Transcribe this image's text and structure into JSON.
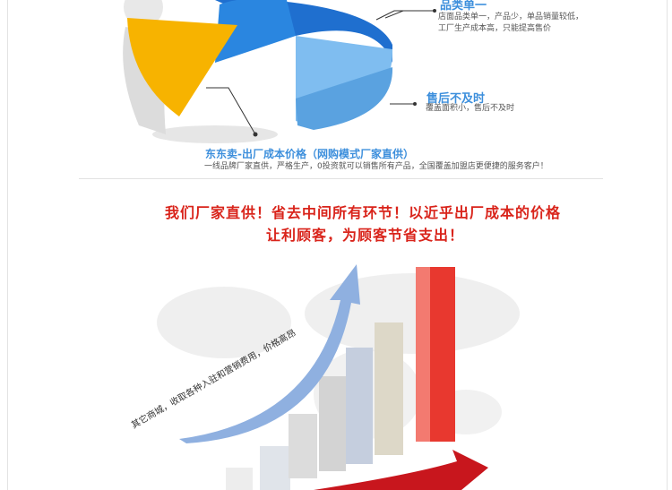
{
  "pie_section": {
    "callout_1": {
      "title": "品类单一",
      "lines": [
        "店面品类单一，产品少，单品销量较低，",
        "工厂生产成本高，只能提高售价"
      ]
    },
    "callout_2": {
      "title": "售后不及时",
      "lines": [
        "覆盖面积小，售后不及时"
      ]
    },
    "headline": "东东卖-出厂成本价格（网购模式厂家直供）",
    "subline": "一线品牌厂家直供，严格生产，0投资就可以销售所有产品，全国覆盖加盟店更便捷的服务客户！",
    "colors": {
      "accent_yellow": "#f7b300",
      "pie_blue": "#3d8fdc",
      "pie_light": "#7fbdf0"
    }
  },
  "price_section": {
    "headline_1": "我们厂家直供！省去中间所有环节！以近乎出厂成本的价格",
    "headline_2": "让利顾客，为顾客节省支出！",
    "arrow_label": "其它商城，收取各种入驻和营销费用，价格高昂",
    "colors": {
      "headline_red": "#d9241b",
      "bar_red": "#e8382f",
      "arrow_blue": "#8fb0e0"
    }
  }
}
